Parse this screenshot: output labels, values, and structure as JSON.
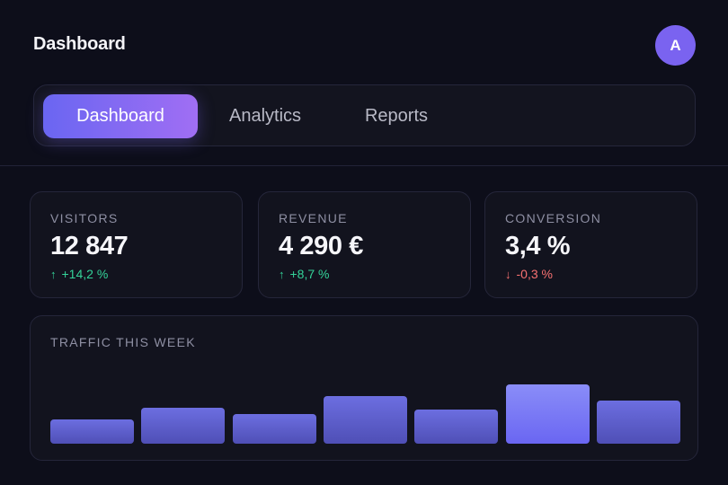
{
  "header": {
    "title": "Dashboard",
    "avatar_initial": "A"
  },
  "tabs": [
    {
      "label": "Dashboard",
      "active": true
    },
    {
      "label": "Analytics",
      "active": false
    },
    {
      "label": "Reports",
      "active": false
    }
  ],
  "stats": [
    {
      "label": "VISITORS",
      "value": "12 847",
      "delta": "+14,2 %",
      "direction": "up"
    },
    {
      "label": "REVENUE",
      "value": "4 290 €",
      "delta": "+8,7 %",
      "direction": "up"
    },
    {
      "label": "CONVERSION",
      "value": "3,4 %",
      "delta": "-0,3 %",
      "direction": "down"
    }
  ],
  "traffic": {
    "title": "TRAFFIC THIS WEEK"
  },
  "chart_data": {
    "type": "bar",
    "values": [
      27,
      40,
      33,
      53,
      38,
      66,
      48
    ],
    "ylim": [
      0,
      82
    ],
    "grid": false,
    "highlight_index": 5
  },
  "colors": {
    "accent": "#6a66f2",
    "accent_2": "#a06ef3",
    "positive": "#34d399",
    "negative": "#f87171",
    "background": "#0d0e1a"
  }
}
